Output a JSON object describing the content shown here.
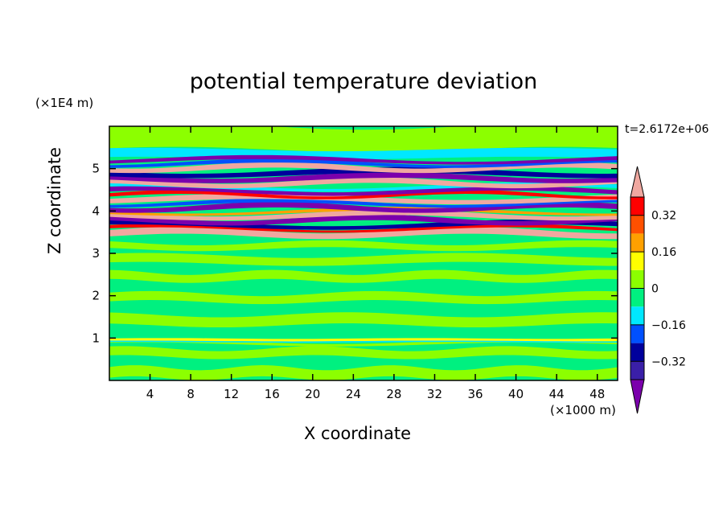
{
  "chart_data": {
    "type": "heatmap",
    "title": "potential temperature deviation",
    "xlabel": "X coordinate",
    "ylabel": "Z coordinate",
    "x_unit": "(×1000 m)",
    "y_unit": "(×1E4 m)",
    "time_label": "t=2.6172e+06",
    "xlim": [
      0,
      50
    ],
    "ylim": [
      0,
      6
    ],
    "x_ticks": [
      4,
      8,
      12,
      16,
      20,
      24,
      28,
      32,
      36,
      40,
      44,
      48
    ],
    "y_ticks": [
      1,
      2,
      3,
      4,
      5
    ],
    "colorbar": {
      "levels": [
        -0.4,
        -0.32,
        -0.24,
        -0.16,
        -0.08,
        0,
        0.08,
        0.16,
        0.24,
        0.32,
        0.4
      ],
      "tick_labels": [
        "0.32",
        "0.16",
        "0",
        "−0.16",
        "−0.32"
      ],
      "tick_values": [
        0.32,
        0.16,
        0,
        -0.16,
        -0.32
      ],
      "colors": [
        "#7b00ac",
        "#3a1fa8",
        "#00009c",
        "#0050ff",
        "#00e8ff",
        "#00f080",
        "#8cff00",
        "#ffff00",
        "#ffa000",
        "#ff5000",
        "#ff0000",
        "#f0a8a0"
      ],
      "extend": "both"
    },
    "bands": [
      {
        "z_range": [
          0,
          0.9
        ],
        "pattern": "mostly green and light-green, weak variation"
      },
      {
        "z": 0.95,
        "pattern": "thin mixed band with small red and blue specks"
      },
      {
        "z_range": [
          1,
          3.3
        ],
        "pattern": "alternating green and light-green streaks, values near 0"
      },
      {
        "z_range": [
          3.4,
          5.2
        ],
        "pattern": "strong alternating layers of purple (≤ -0.4) and pink (≥ 0.4) with blue, red, orange, cyan edges"
      },
      {
        "z_range": [
          5.3,
          6
        ],
        "pattern": "green and light-green, near 0"
      }
    ]
  }
}
